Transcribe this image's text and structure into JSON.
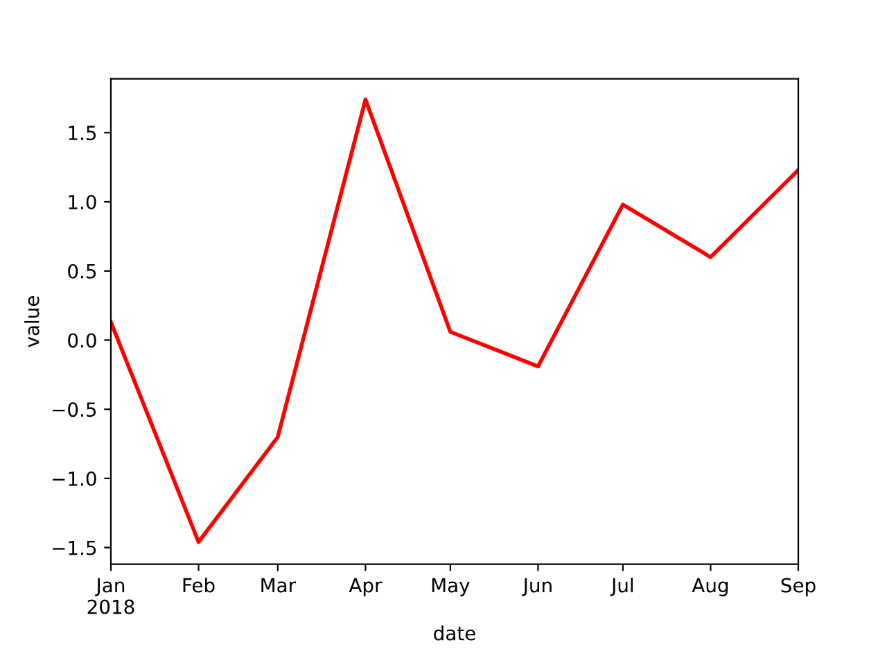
{
  "chart_data": {
    "type": "line",
    "xlabel": "date",
    "ylabel": "value",
    "x": [
      "2018-01",
      "2018-02",
      "2018-03",
      "2018-04",
      "2018-05",
      "2018-06",
      "2018-07",
      "2018-08",
      "2018-09"
    ],
    "series": [
      {
        "color": "#ff0000",
        "values": [
          0.13,
          -1.46,
          -0.7,
          1.74,
          0.06,
          -0.19,
          0.98,
          0.6,
          1.23
        ]
      }
    ],
    "xlim": [
      "2018-01",
      "2018-09"
    ],
    "xticks": [
      {
        "value": "2018-01",
        "label": "Jan\n2018"
      },
      {
        "value": "2018-02",
        "label": "Feb"
      },
      {
        "value": "2018-03",
        "label": "Mar"
      },
      {
        "value": "2018-04",
        "label": "Apr"
      },
      {
        "value": "2018-05",
        "label": "May"
      },
      {
        "value": "2018-06",
        "label": "Jun"
      },
      {
        "value": "2018-07",
        "label": "Jul"
      },
      {
        "value": "2018-08",
        "label": "Aug"
      },
      {
        "value": "2018-09",
        "label": "Sep"
      }
    ],
    "ylim": [
      -1.62,
      1.89
    ],
    "yticks": [
      {
        "value": -1.5,
        "label": "−1.5"
      },
      {
        "value": -1.0,
        "label": "−1.0"
      },
      {
        "value": -0.5,
        "label": "−0.5"
      },
      {
        "value": 0.0,
        "label": "0.0"
      },
      {
        "value": 0.5,
        "label": "0.5"
      },
      {
        "value": 1.0,
        "label": "1.0"
      },
      {
        "value": 1.5,
        "label": "1.5"
      }
    ],
    "grid": false,
    "legend": false,
    "marker": "none",
    "line_style": "solid"
  }
}
